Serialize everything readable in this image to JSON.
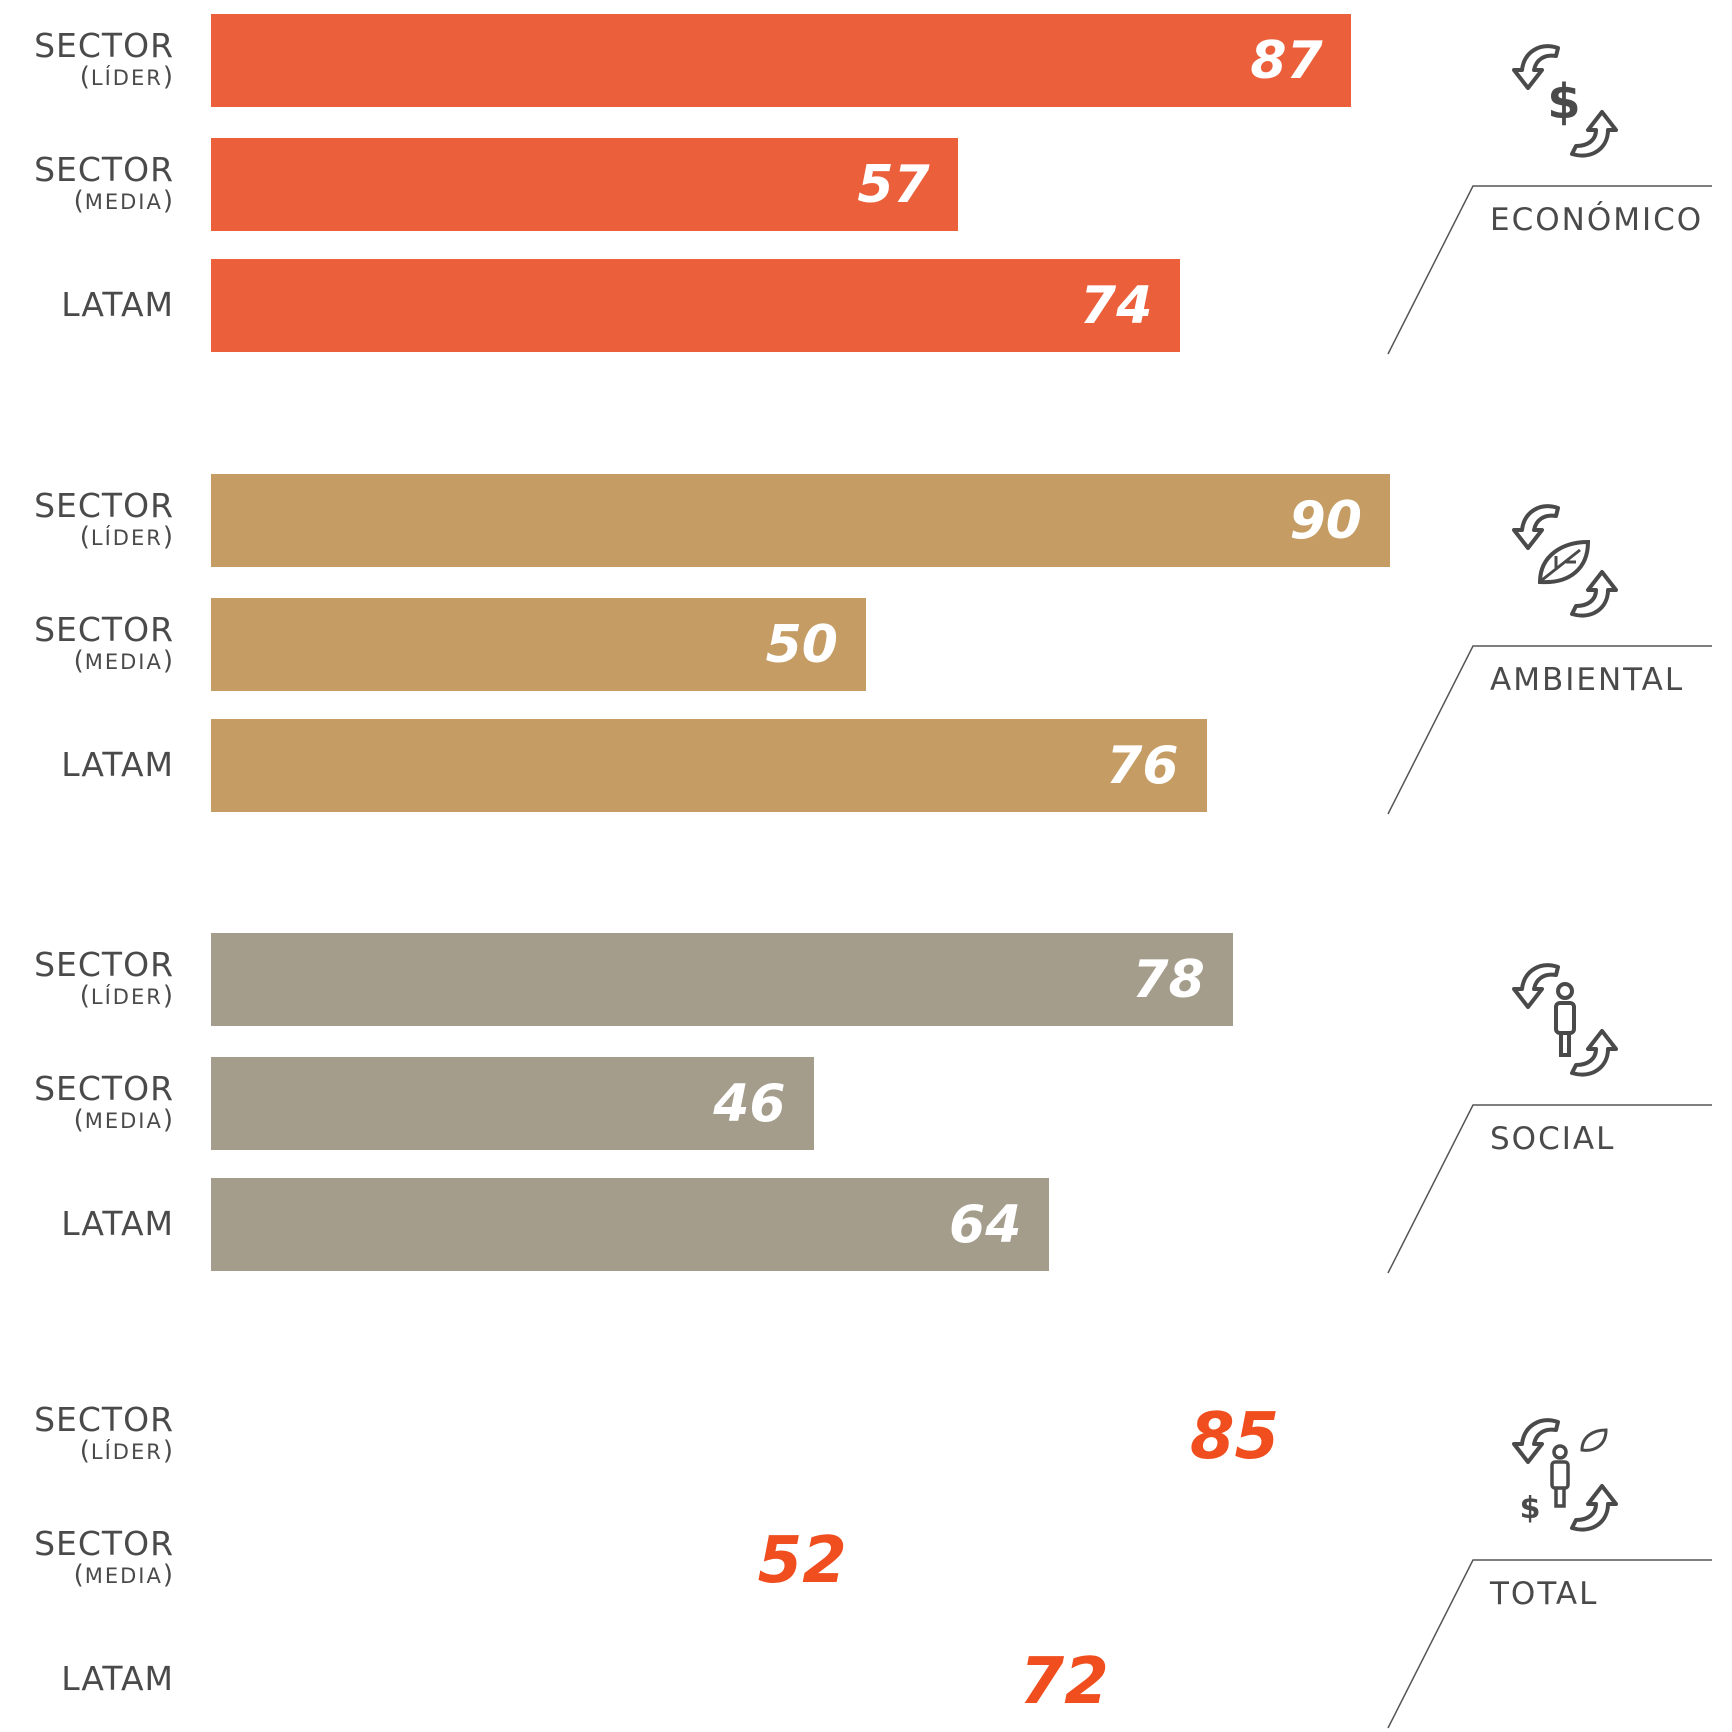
{
  "chart_data": {
    "type": "bar",
    "orientation": "horizontal",
    "row_labels": [
      {
        "main": "SECTOR",
        "sub": "LÍDER"
      },
      {
        "main": "SECTOR",
        "sub": "MEDIA"
      },
      {
        "main": "LATAM",
        "sub": ""
      }
    ],
    "groups": [
      {
        "category": "ECONÓMICO",
        "icon": "economic-icon",
        "color": "#eb603b",
        "values": [
          87,
          57,
          74
        ]
      },
      {
        "category": "AMBIENTAL",
        "icon": "environmental-icon",
        "color": "#c59c63",
        "values": [
          90,
          50,
          76
        ]
      },
      {
        "category": "SOCIAL",
        "icon": "social-icon",
        "color": "#a59d8c",
        "values": [
          78,
          46,
          64
        ]
      },
      {
        "category": "TOTAL",
        "icon": "total-icon",
        "color": "#f04e1e",
        "values": [
          85,
          52,
          72
        ],
        "style": "values-only"
      }
    ],
    "xlim": [
      0,
      100
    ],
    "grid": false,
    "legend": "none"
  }
}
